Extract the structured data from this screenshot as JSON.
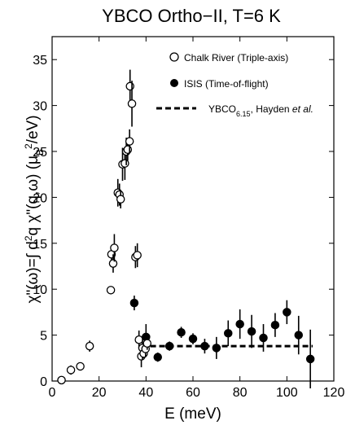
{
  "chart_data": {
    "type": "scatter",
    "title": "YBCO Ortho−II, T=6 K",
    "xlabel": "E (meV)",
    "ylabel": {
      "prefix": "χ\"(ω)=∫ d",
      "sup1": "2",
      "mid": "q χ\"(q,ω) (μ",
      "sub": "B",
      "sup2": "2",
      "suffix": "/eV)"
    },
    "xlim": [
      0,
      120
    ],
    "ylim": [
      0,
      37.5
    ],
    "xticks": [
      "0",
      "20",
      "40",
      "60",
      "80",
      "100",
      "120"
    ],
    "yticks": [
      "0",
      "5",
      "10",
      "15",
      "20",
      "25",
      "30",
      "35"
    ],
    "grid": false,
    "legend_position": "top-right",
    "series": [
      {
        "name": "Chalk River (Triple-axis)",
        "marker": "open-circle",
        "color": "#000000",
        "points": [
          {
            "x": 4,
            "y": 0.1,
            "err": 0.3
          },
          {
            "x": 8,
            "y": 1.2,
            "err": 0.5
          },
          {
            "x": 12,
            "y": 1.6,
            "err": 0.2
          },
          {
            "x": 16,
            "y": 3.8,
            "err": 0.6
          },
          {
            "x": 25,
            "y": 9.9,
            "err": 0.4
          },
          {
            "x": 25.3,
            "y": 13.8,
            "err": 0.9
          },
          {
            "x": 26,
            "y": 12.8,
            "err": 1.0
          },
          {
            "x": 26.5,
            "y": 14.5,
            "err": 1.5
          },
          {
            "x": 28,
            "y": 20.5,
            "err": 1.5
          },
          {
            "x": 28.7,
            "y": 20.3,
            "err": 1.2
          },
          {
            "x": 29.2,
            "y": 19.8,
            "err": 1.0
          },
          {
            "x": 30,
            "y": 23.6,
            "err": 1.8
          },
          {
            "x": 31,
            "y": 23.7,
            "err": 1.8
          },
          {
            "x": 31.6,
            "y": 25.0,
            "err": 1.5
          },
          {
            "x": 32.2,
            "y": 25.2,
            "err": 1.2
          },
          {
            "x": 33,
            "y": 26.1,
            "err": 1.3
          },
          {
            "x": 33.2,
            "y": 32.1,
            "err": 1.8
          },
          {
            "x": 34,
            "y": 30.2,
            "err": 2.5
          },
          {
            "x": 35.5,
            "y": 13.5,
            "err": 1.2
          },
          {
            "x": 36.3,
            "y": 13.7,
            "err": 1.3
          },
          {
            "x": 37,
            "y": 4.5,
            "err": 1.0
          },
          {
            "x": 38,
            "y": 2.7,
            "err": 1.2
          },
          {
            "x": 38.5,
            "y": 3.6,
            "err": 1.3
          },
          {
            "x": 39,
            "y": 3.0,
            "err": 0.5
          },
          {
            "x": 39.8,
            "y": 3.5,
            "err": 0.9
          },
          {
            "x": 40.5,
            "y": 4.1,
            "err": 0.7
          }
        ]
      },
      {
        "name": "ISIS (Time-of-flight)",
        "marker": "filled-circle",
        "color": "#000000",
        "points": [
          {
            "x": 35,
            "y": 8.5,
            "err": 0.8
          },
          {
            "x": 40,
            "y": 4.8,
            "err": 1.4
          },
          {
            "x": 45,
            "y": 2.6,
            "err": 0.5
          },
          {
            "x": 50,
            "y": 3.8,
            "err": 0.5
          },
          {
            "x": 55,
            "y": 5.3,
            "err": 0.6
          },
          {
            "x": 60,
            "y": 4.6,
            "err": 0.6
          },
          {
            "x": 65,
            "y": 3.8,
            "err": 0.8
          },
          {
            "x": 70,
            "y": 3.6,
            "err": 1.2
          },
          {
            "x": 75,
            "y": 5.2,
            "err": 1.4
          },
          {
            "x": 80,
            "y": 6.2,
            "err": 1.6
          },
          {
            "x": 85,
            "y": 5.4,
            "err": 1.8
          },
          {
            "x": 90,
            "y": 4.7,
            "err": 1.5
          },
          {
            "x": 95,
            "y": 6.1,
            "err": 1.3
          },
          {
            "x": 100,
            "y": 7.5,
            "err": 1.3
          },
          {
            "x": 105,
            "y": 5.0,
            "err": 2.1
          },
          {
            "x": 110,
            "y": 2.4,
            "err": 3.2
          }
        ]
      },
      {
        "name": {
          "prefix": "YBCO",
          "sub": "6.15",
          "mid": ", Hayden ",
          "italic": "et al."
        },
        "marker": "dashed-line",
        "color": "#000000",
        "points": [
          {
            "x": 38,
            "y": 3.8
          },
          {
            "x": 111,
            "y": 3.8
          }
        ]
      }
    ]
  }
}
